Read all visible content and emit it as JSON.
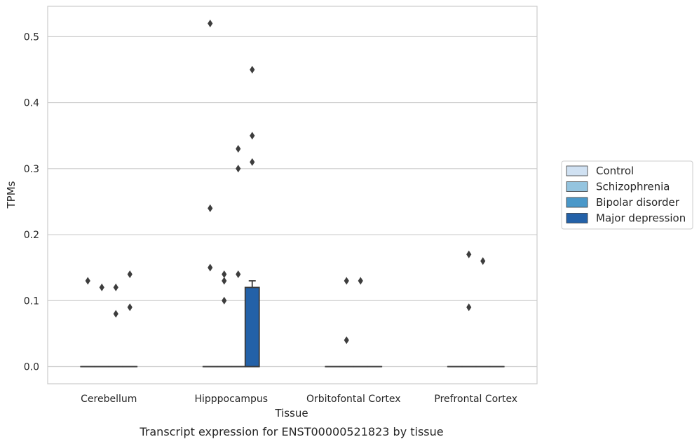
{
  "chart_data": {
    "type": "box",
    "xlabel": "Tissue",
    "ylabel": "TPMs",
    "caption": "Transcript expression for ENST00000521823 by tissue",
    "categories": [
      "Cerebellum",
      "Hipppocampus",
      "Orbitofontal Cortex",
      "Prefrontal Cortex"
    ],
    "ylim": [
      -0.026,
      0.546
    ],
    "yticks": [
      0.0,
      0.1,
      0.2,
      0.3,
      0.4,
      0.5
    ],
    "ytick_labels": [
      "0.0",
      "0.1",
      "0.2",
      "0.3",
      "0.4",
      "0.5"
    ],
    "grid": "horizontal",
    "legend_position": "right",
    "series": [
      {
        "name": "Control",
        "color": "#d0e1f2",
        "boxes": [
          {
            "category": "Cerebellum",
            "q1": 0,
            "median": 0,
            "q3": 0,
            "whisker_low": 0,
            "whisker_high": 0,
            "outliers": [
              0.13
            ]
          },
          {
            "category": "Hipppocampus",
            "q1": 0,
            "median": 0,
            "q3": 0,
            "whisker_low": 0,
            "whisker_high": 0,
            "outliers": [
              0.52,
              0.24,
              0.15
            ]
          },
          {
            "category": "Orbitofontal Cortex",
            "q1": 0,
            "median": 0,
            "q3": 0,
            "whisker_low": 0,
            "whisker_high": 0,
            "outliers": []
          },
          {
            "category": "Prefrontal Cortex",
            "q1": 0,
            "median": 0,
            "q3": 0,
            "whisker_low": 0,
            "whisker_high": 0,
            "outliers": []
          }
        ]
      },
      {
        "name": "Schizophrenia",
        "color": "#94c4df",
        "boxes": [
          {
            "category": "Cerebellum",
            "q1": 0,
            "median": 0,
            "q3": 0,
            "whisker_low": 0,
            "whisker_high": 0,
            "outliers": [
              0.12
            ]
          },
          {
            "category": "Hipppocampus",
            "q1": 0,
            "median": 0,
            "q3": 0,
            "whisker_low": 0,
            "whisker_high": 0,
            "outliers": [
              0.14,
              0.13,
              0.1
            ]
          },
          {
            "category": "Orbitofontal Cortex",
            "q1": 0,
            "median": 0,
            "q3": 0,
            "whisker_low": 0,
            "whisker_high": 0,
            "outliers": [
              0.13,
              0.04
            ]
          },
          {
            "category": "Prefrontal Cortex",
            "q1": 0,
            "median": 0,
            "q3": 0,
            "whisker_low": 0,
            "whisker_high": 0,
            "outliers": [
              0.17,
              0.09
            ]
          }
        ]
      },
      {
        "name": "Bipolar disorder",
        "color": "#4a98c9",
        "boxes": [
          {
            "category": "Cerebellum",
            "q1": 0,
            "median": 0,
            "q3": 0,
            "whisker_low": 0,
            "whisker_high": 0,
            "outliers": [
              0.12,
              0.08
            ]
          },
          {
            "category": "Hipppocampus",
            "q1": 0,
            "median": 0,
            "q3": 0,
            "whisker_low": 0,
            "whisker_high": 0,
            "outliers": [
              0.33,
              0.3,
              0.14
            ]
          },
          {
            "category": "Orbitofontal Cortex",
            "q1": 0,
            "median": 0,
            "q3": 0,
            "whisker_low": 0,
            "whisker_high": 0,
            "outliers": [
              0.13
            ]
          },
          {
            "category": "Prefrontal Cortex",
            "q1": 0,
            "median": 0,
            "q3": 0,
            "whisker_low": 0,
            "whisker_high": 0,
            "outliers": [
              0.16
            ]
          }
        ]
      },
      {
        "name": "Major depression",
        "color": "#2361a8",
        "boxes": [
          {
            "category": "Cerebellum",
            "q1": 0,
            "median": 0,
            "q3": 0,
            "whisker_low": 0,
            "whisker_high": 0,
            "outliers": [
              0.14,
              0.09
            ]
          },
          {
            "category": "Hipppocampus",
            "q1": 0,
            "median": 0,
            "q3": 0.12,
            "whisker_low": 0,
            "whisker_high": 0.13,
            "outliers": [
              0.45,
              0.35,
              0.31
            ]
          },
          {
            "category": "Orbitofontal Cortex",
            "q1": 0,
            "median": 0,
            "q3": 0,
            "whisker_low": 0,
            "whisker_high": 0,
            "outliers": []
          },
          {
            "category": "Prefrontal Cortex",
            "q1": 0,
            "median": 0,
            "q3": 0,
            "whisker_low": 0,
            "whisker_high": 0,
            "outliers": []
          }
        ]
      }
    ]
  }
}
